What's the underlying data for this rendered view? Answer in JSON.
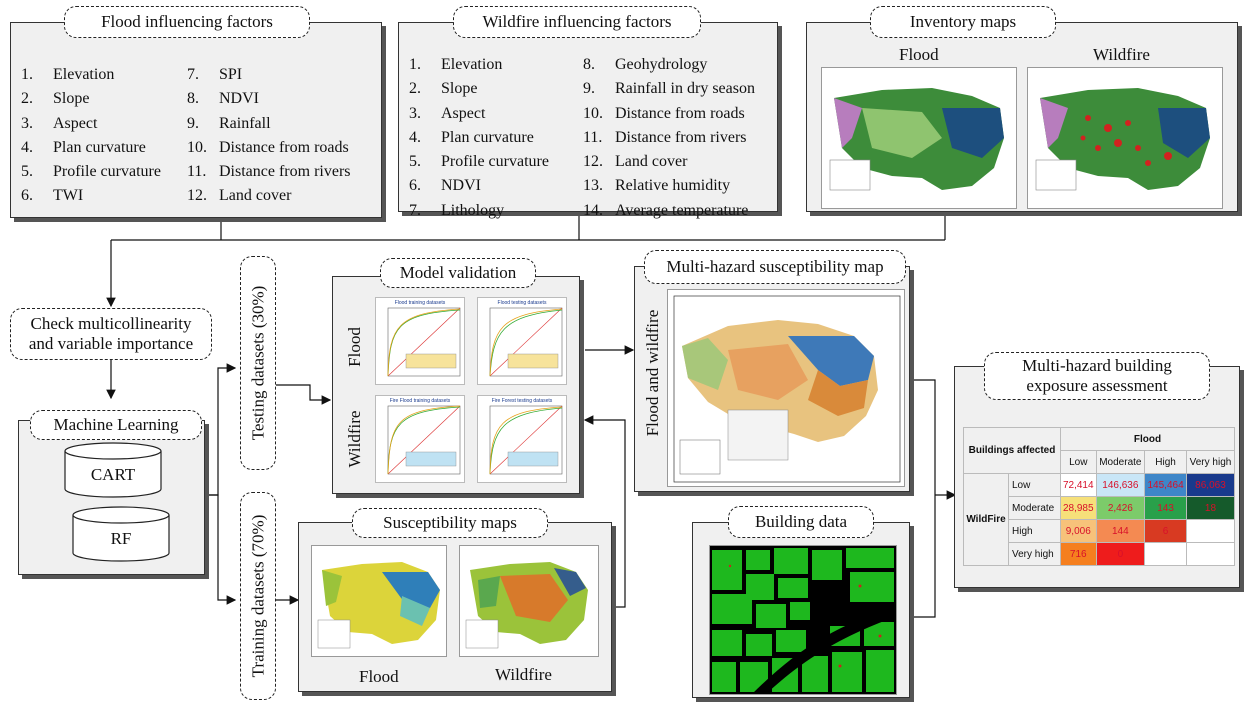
{
  "flood_factors": {
    "title": "Flood influencing factors",
    "col1": [
      {
        "n": "1.",
        "t": "Elevation"
      },
      {
        "n": "2.",
        "t": "Slope"
      },
      {
        "n": "3.",
        "t": "Aspect"
      },
      {
        "n": "4.",
        "t": "Plan curvature"
      },
      {
        "n": "5.",
        "t": "Profile curvature"
      },
      {
        "n": "6.",
        "t": "TWI"
      }
    ],
    "col2": [
      {
        "n": "7.",
        "t": "SPI"
      },
      {
        "n": "8.",
        "t": "NDVI"
      },
      {
        "n": "9.",
        "t": "Rainfall"
      },
      {
        "n": "10.",
        "t": "Distance from roads"
      },
      {
        "n": "11.",
        "t": "Distance from rivers"
      },
      {
        "n": "12.",
        "t": "Land cover"
      }
    ]
  },
  "wildfire_factors": {
    "title": "Wildfire influencing factors",
    "col1": [
      {
        "n": "1.",
        "t": "Elevation"
      },
      {
        "n": "2.",
        "t": "Slope"
      },
      {
        "n": "3.",
        "t": "Aspect"
      },
      {
        "n": "4.",
        "t": "Plan curvature"
      },
      {
        "n": "5.",
        "t": "Profile curvature"
      },
      {
        "n": "6.",
        "t": "NDVI"
      },
      {
        "n": "7.",
        "t": "Lithology"
      }
    ],
    "col2": [
      {
        "n": "8.",
        "t": "Geohydrology"
      },
      {
        "n": "9.",
        "t": "Rainfall in dry season"
      },
      {
        "n": "10.",
        "t": "Distance from roads"
      },
      {
        "n": "11.",
        "t": "Distance from rivers"
      },
      {
        "n": "12.",
        "t": "Land cover"
      },
      {
        "n": "13.",
        "t": "Relative humidity"
      },
      {
        "n": "14.",
        "t": "Average temperature"
      }
    ]
  },
  "inventory": {
    "title": "Inventory maps",
    "flood": "Flood",
    "wildfire": "Wildfire"
  },
  "check": {
    "line1": "Check multicollinearity",
    "line2": "and variable importance"
  },
  "ml": {
    "title": "Machine Learning",
    "m1": "CART",
    "m2": "RF"
  },
  "testing": "Testing datasets (30%)",
  "training": "Training datasets (70%)",
  "validation": {
    "title": "Model validation",
    "row1": "Flood",
    "row2": "Wildfire",
    "plots": [
      "Flood training datasets",
      "Flood testing datasets",
      "Fire Flood training datasets",
      "Fire Forest testing datasets"
    ]
  },
  "susceptibility": {
    "title": "Susceptibility maps",
    "flood": "Flood",
    "wildfire": "Wildfire"
  },
  "multimap": {
    "title": "Multi-hazard susceptibility map",
    "side": "Flood and wildfire"
  },
  "building": {
    "title": "Building data"
  },
  "exposure": {
    "title_l1": "Multi-hazard building",
    "title_l2": "exposure assessment",
    "corner": "Buildings affected",
    "flood": "Flood",
    "wildfire": "WildFire",
    "cols": [
      "Low",
      "Moderate",
      "High",
      "Very high"
    ],
    "rows": [
      "Low",
      "Moderate",
      "High",
      "Very high"
    ],
    "values": [
      [
        "72,414",
        "146,636",
        "145,464",
        "86,063"
      ],
      [
        "28,985",
        "2,426",
        "143",
        "18"
      ],
      [
        "9,006",
        "144",
        "6",
        ""
      ],
      [
        "716",
        "0",
        "",
        ""
      ]
    ],
    "colors": [
      [
        "#ffffff",
        "#c9e6f7",
        "#3e86c8",
        "#193a8c"
      ],
      [
        "#f6e07a",
        "#7ccb6a",
        "#29a04a",
        "#155a2b"
      ],
      [
        "#f7c27a",
        "#f48a52",
        "#d83a22",
        "#ffffff"
      ],
      [
        "#f57f1f",
        "#ee1c1c",
        "#ffffff",
        "#ffffff"
      ]
    ]
  }
}
